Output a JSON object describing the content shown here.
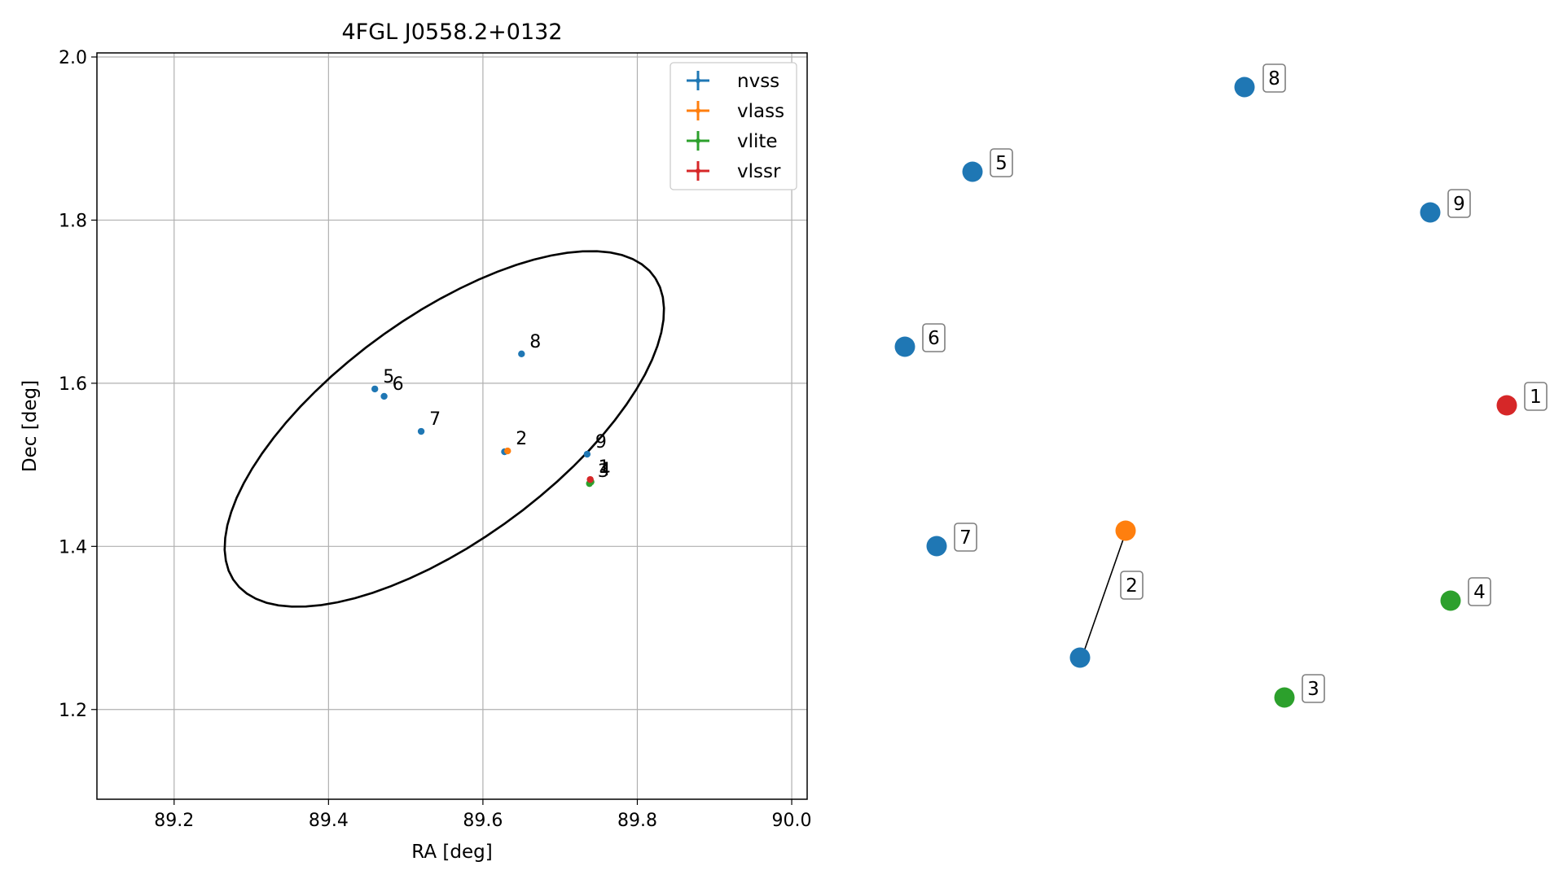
{
  "chart_data": [
    {
      "type": "scatter",
      "title": "4FGL J0558.2+0132",
      "xlabel": "RA [deg]",
      "ylabel": "Dec [deg]",
      "xlim": [
        89.1,
        90.02
      ],
      "ylim": [
        1.09,
        2.005
      ],
      "xticks": [
        "89.2",
        "89.4",
        "89.6",
        "89.8",
        "90.0"
      ],
      "yticks": [
        "1.2",
        "1.4",
        "1.6",
        "1.8",
        "2.0"
      ],
      "grid": true,
      "legend_position": "top-right",
      "series": [
        {
          "name": "nvss",
          "color": "#1f77b4",
          "points": [
            {
              "id": "5",
              "ra": 89.46,
              "dec": 1.593
            },
            {
              "id": "6",
              "ra": 89.472,
              "dec": 1.584
            },
            {
              "id": "7",
              "ra": 89.52,
              "dec": 1.541
            },
            {
              "id": "8",
              "ra": 89.65,
              "dec": 1.636
            },
            {
              "id": "9",
              "ra": 89.735,
              "dec": 1.513
            },
            {
              "id": "",
              "ra": 89.628,
              "dec": 1.516
            }
          ]
        },
        {
          "name": "vlass",
          "color": "#ff7f0e",
          "points": [
            {
              "id": "2",
              "ra": 89.632,
              "dec": 1.517
            }
          ]
        },
        {
          "name": "vlite",
          "color": "#2ca02c",
          "points": [
            {
              "id": "3",
              "ra": 89.738,
              "dec": 1.477
            },
            {
              "id": "4",
              "ra": 89.74,
              "dec": 1.479
            }
          ]
        },
        {
          "name": "vlssr",
          "color": "#d62728",
          "points": [
            {
              "id": "1",
              "ra": 89.739,
              "dec": 1.482
            }
          ]
        }
      ],
      "ellipse": {
        "center_ra": 89.55,
        "center_dec": 1.544,
        "semi_major_deg": 0.33,
        "semi_minor_deg": 0.14,
        "angle_deg": 34,
        "color": "#000000"
      }
    },
    {
      "type": "scatter",
      "description": "zoomed source layout (no axes)",
      "points": [
        {
          "id": "8",
          "color": "#1f77b4"
        },
        {
          "id": "5",
          "color": "#1f77b4"
        },
        {
          "id": "9",
          "color": "#1f77b4"
        },
        {
          "id": "6",
          "color": "#1f77b4"
        },
        {
          "id": "1",
          "color": "#d62728"
        },
        {
          "id": "7",
          "color": "#1f77b4"
        },
        {
          "id": "2",
          "color": "#ff7f0e"
        },
        {
          "id": "",
          "color": "#1f77b4"
        },
        {
          "id": "4",
          "color": "#2ca02c"
        },
        {
          "id": "3",
          "color": "#2ca02c"
        }
      ]
    }
  ]
}
